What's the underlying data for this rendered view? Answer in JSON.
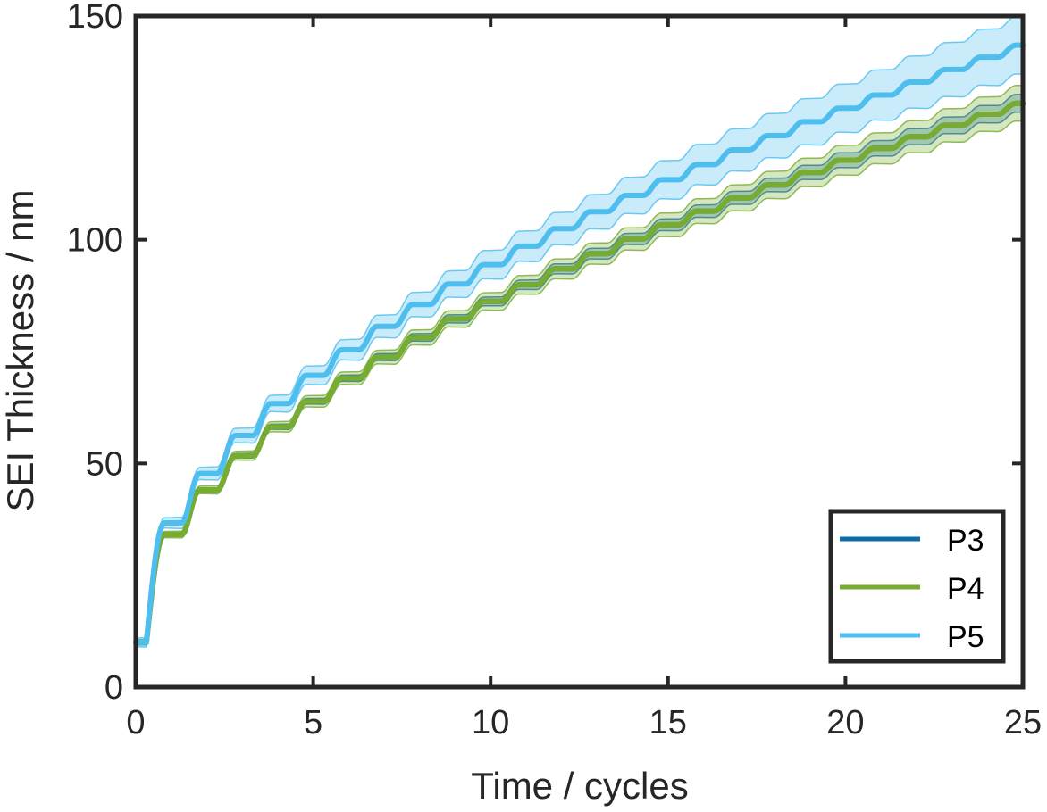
{
  "chart_data": {
    "type": "line",
    "xlabel": "Time  /  cycles",
    "ylabel": "SEI Thickness  /  nm",
    "xlim": [
      0,
      25
    ],
    "ylim": [
      0,
      150
    ],
    "xticks": [
      0,
      5,
      10,
      15,
      20,
      25
    ],
    "yticks": [
      0,
      50,
      100,
      150
    ],
    "xtick_labels": [
      "0",
      "5",
      "10",
      "15",
      "20",
      "25"
    ],
    "ytick_labels": [
      "0",
      "50",
      "100",
      "150"
    ],
    "grid": false,
    "legend_position": "bottom-right",
    "series": [
      {
        "name": "P3",
        "color": "#0f6aa8",
        "band_color": "#0f6aa8",
        "fit_coefficient": 24.1,
        "offset": 10,
        "band_width": 2.0
      },
      {
        "name": "P4",
        "color": "#77ac30",
        "band_color": "#77ac30",
        "fit_coefficient": 24.1,
        "offset": 10,
        "band_width": 4.0
      },
      {
        "name": "P5",
        "color": "#4dbeee",
        "band_color": "#4dbeee",
        "fit_coefficient": 26.7,
        "offset": 10,
        "band_width": 6.5
      }
    ]
  }
}
